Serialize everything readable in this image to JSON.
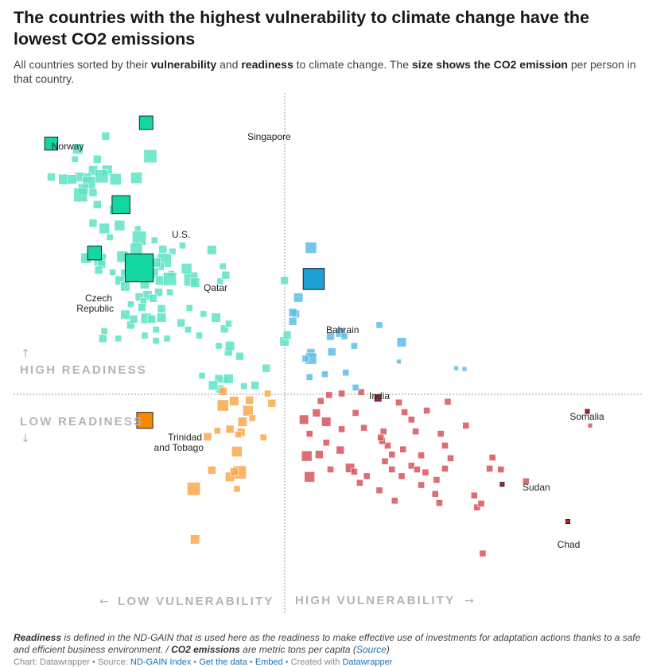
{
  "title": "The countries with the highest vulnerability to climate change have the lowest CO2 emissions",
  "subtitle": {
    "p1": "All countries sorted by their ",
    "b1": "vulnerability",
    "p2": " and ",
    "b2": "readiness",
    "p3": " to climate change. The ",
    "b3": "size shows the CO2 emission",
    "p4": " per person in that country."
  },
  "quadrant_labels": {
    "high_readiness": "HIGH READINESS",
    "low_readiness": "LOW READINESS",
    "low_vulnerability": "LOW VULNERABILITY",
    "high_vulnerability": "HIGH VULNERABILITY",
    "arrow_up": "↑",
    "arrow_down": "↓",
    "arrow_left": "←",
    "arrow_right": "→"
  },
  "colors": {
    "low_vuln_high_ready": "#5de3c3",
    "high_vuln_high_ready": "#5cbde6",
    "low_vuln_low_ready": "#f9a84b",
    "high_vuln_low_ready": "#d6555a",
    "highlight_low_vuln_high_ready": "#13d6a1",
    "highlight_high_vuln_high_ready": "#1c9fd3",
    "highlight_low_vuln_low_ready": "#f78a00",
    "highlight_high_vuln_low_ready": "#b8252c",
    "divider": "#999999"
  },
  "chart_data": {
    "type": "scatter",
    "x_variable": "vulnerability",
    "y_variable": "readiness",
    "size_variable": "CO2 emissions per capita",
    "xlim": [
      0.25,
      0.7
    ],
    "ylim": [
      0.15,
      0.85
    ],
    "x_split": 0.45,
    "y_split": 0.45,
    "labeled_points": [
      {
        "name": "Norway",
        "x": 0.277,
        "y": 0.782,
        "co2": 8.0
      },
      {
        "name": "Singapore",
        "x": 0.345,
        "y": 0.81,
        "co2": 8.5
      },
      {
        "name": "U.S.",
        "x": 0.327,
        "y": 0.7,
        "co2": 15.0
      },
      {
        "name": "Czech Republic",
        "x": 0.308,
        "y": 0.635,
        "co2": 9.0
      },
      {
        "name": "Qatar",
        "x": 0.34,
        "y": 0.615,
        "co2": 37.0
      },
      {
        "name": "Bahrain",
        "x": 0.465,
        "y": 0.6,
        "co2": 21.0
      },
      {
        "name": "India",
        "x": 0.511,
        "y": 0.44,
        "co2": 1.8
      },
      {
        "name": "Trinidad and Tobago",
        "x": 0.344,
        "y": 0.41,
        "co2": 12.0
      },
      {
        "name": "Somalia",
        "x": 0.661,
        "y": 0.422,
        "co2": 0.05
      },
      {
        "name": "Sudan",
        "x": 0.6,
        "y": 0.324,
        "co2": 0.4
      },
      {
        "name": "Chad",
        "x": 0.647,
        "y": 0.274,
        "co2": 0.1
      }
    ],
    "points": [
      {
        "x": 0.316,
        "y": 0.792,
        "co2": 3
      },
      {
        "x": 0.296,
        "y": 0.775,
        "co2": 5
      },
      {
        "x": 0.348,
        "y": 0.765,
        "co2": 8
      },
      {
        "x": 0.294,
        "y": 0.761,
        "co2": 2
      },
      {
        "x": 0.31,
        "y": 0.761,
        "co2": 3
      },
      {
        "x": 0.317,
        "y": 0.746,
        "co2": 5
      },
      {
        "x": 0.307,
        "y": 0.746,
        "co2": 4
      },
      {
        "x": 0.313,
        "y": 0.738,
        "co2": 8
      },
      {
        "x": 0.303,
        "y": 0.737,
        "co2": 3
      },
      {
        "x": 0.297,
        "y": 0.737,
        "co2": 4
      },
      {
        "x": 0.277,
        "y": 0.737,
        "co2": 3
      },
      {
        "x": 0.286,
        "y": 0.734,
        "co2": 5
      },
      {
        "x": 0.292,
        "y": 0.734,
        "co2": 4
      },
      {
        "x": 0.304,
        "y": 0.729,
        "co2": 8
      },
      {
        "x": 0.323,
        "y": 0.734,
        "co2": 6
      },
      {
        "x": 0.338,
        "y": 0.736,
        "co2": 6
      },
      {
        "x": 0.3,
        "y": 0.721,
        "co2": 5
      },
      {
        "x": 0.307,
        "y": 0.716,
        "co2": 3
      },
      {
        "x": 0.298,
        "y": 0.713,
        "co2": 9
      },
      {
        "x": 0.31,
        "y": 0.7,
        "co2": 3
      },
      {
        "x": 0.322,
        "y": 0.693,
        "co2": 4
      },
      {
        "x": 0.326,
        "y": 0.672,
        "co2": 5
      },
      {
        "x": 0.307,
        "y": 0.675,
        "co2": 3
      },
      {
        "x": 0.315,
        "y": 0.668,
        "co2": 5
      },
      {
        "x": 0.339,
        "y": 0.667,
        "co2": 2
      },
      {
        "x": 0.34,
        "y": 0.655,
        "co2": 9
      },
      {
        "x": 0.351,
        "y": 0.652,
        "co2": 2
      },
      {
        "x": 0.319,
        "y": 0.656,
        "co2": 2
      },
      {
        "x": 0.338,
        "y": 0.64,
        "co2": 7
      },
      {
        "x": 0.357,
        "y": 0.64,
        "co2": 3
      },
      {
        "x": 0.364,
        "y": 0.637,
        "co2": 2
      },
      {
        "x": 0.328,
        "y": 0.63,
        "co2": 6
      },
      {
        "x": 0.358,
        "y": 0.625,
        "co2": 9
      },
      {
        "x": 0.302,
        "y": 0.628,
        "co2": 5
      },
      {
        "x": 0.312,
        "y": 0.626,
        "co2": 7
      },
      {
        "x": 0.313,
        "y": 0.62,
        "co2": 3
      },
      {
        "x": 0.355,
        "y": 0.617,
        "co2": 3
      },
      {
        "x": 0.311,
        "y": 0.612,
        "co2": 3
      },
      {
        "x": 0.337,
        "y": 0.608,
        "co2": 8
      },
      {
        "x": 0.35,
        "y": 0.608,
        "co2": 5
      },
      {
        "x": 0.321,
        "y": 0.609,
        "co2": 2
      },
      {
        "x": 0.33,
        "y": 0.607,
        "co2": 4
      },
      {
        "x": 0.363,
        "y": 0.607,
        "co2": 2
      },
      {
        "x": 0.355,
        "y": 0.598,
        "co2": 4
      },
      {
        "x": 0.341,
        "y": 0.6,
        "co2": 2
      },
      {
        "x": 0.326,
        "y": 0.598,
        "co2": 4
      },
      {
        "x": 0.362,
        "y": 0.6,
        "co2": 8
      },
      {
        "x": 0.377,
        "y": 0.6,
        "co2": 9
      },
      {
        "x": 0.344,
        "y": 0.593,
        "co2": 4
      },
      {
        "x": 0.33,
        "y": 0.59,
        "co2": 4
      },
      {
        "x": 0.354,
        "y": 0.582,
        "co2": 3
      },
      {
        "x": 0.362,
        "y": 0.582,
        "co2": 2
      },
      {
        "x": 0.346,
        "y": 0.578,
        "co2": 4
      },
      {
        "x": 0.34,
        "y": 0.576,
        "co2": 3
      },
      {
        "x": 0.35,
        "y": 0.574,
        "co2": 3
      },
      {
        "x": 0.343,
        "y": 0.57,
        "co2": 2
      },
      {
        "x": 0.334,
        "y": 0.566,
        "co2": 2
      },
      {
        "x": 0.342,
        "y": 0.562,
        "co2": 3
      },
      {
        "x": 0.376,
        "y": 0.561,
        "co2": 2
      },
      {
        "x": 0.386,
        "y": 0.553,
        "co2": 2
      },
      {
        "x": 0.356,
        "y": 0.56,
        "co2": 3
      },
      {
        "x": 0.37,
        "y": 0.541,
        "co2": 3
      },
      {
        "x": 0.344,
        "y": 0.524,
        "co2": 2
      },
      {
        "x": 0.334,
        "y": 0.538,
        "co2": 3
      },
      {
        "x": 0.352,
        "y": 0.532,
        "co2": 2
      },
      {
        "x": 0.375,
        "y": 0.532,
        "co2": 2
      },
      {
        "x": 0.36,
        "y": 0.52,
        "co2": 2
      },
      {
        "x": 0.383,
        "y": 0.524,
        "co2": 2
      },
      {
        "x": 0.315,
        "y": 0.53,
        "co2": 2
      },
      {
        "x": 0.356,
        "y": 0.548,
        "co2": 4
      },
      {
        "x": 0.345,
        "y": 0.547,
        "co2": 5
      },
      {
        "x": 0.349,
        "y": 0.546,
        "co2": 3
      },
      {
        "x": 0.336,
        "y": 0.546,
        "co2": 3
      },
      {
        "x": 0.33,
        "y": 0.552,
        "co2": 4
      },
      {
        "x": 0.395,
        "y": 0.548,
        "co2": 4
      },
      {
        "x": 0.401,
        "y": 0.533,
        "co2": 3
      },
      {
        "x": 0.404,
        "y": 0.54,
        "co2": 2
      },
      {
        "x": 0.352,
        "y": 0.517,
        "co2": 2
      },
      {
        "x": 0.397,
        "y": 0.51,
        "co2": 2
      },
      {
        "x": 0.325,
        "y": 0.52,
        "co2": 2
      },
      {
        "x": 0.314,
        "y": 0.52,
        "co2": 3
      },
      {
        "x": 0.38,
        "y": 0.595,
        "co2": 4
      },
      {
        "x": 0.398,
        "y": 0.597,
        "co2": 2
      },
      {
        "x": 0.402,
        "y": 0.605,
        "co2": 3
      },
      {
        "x": 0.374,
        "y": 0.614,
        "co2": 5
      },
      {
        "x": 0.352,
        "y": 0.622,
        "co2": 4
      },
      {
        "x": 0.371,
        "y": 0.645,
        "co2": 2
      },
      {
        "x": 0.392,
        "y": 0.639,
        "co2": 4
      },
      {
        "x": 0.4,
        "y": 0.617,
        "co2": 2
      },
      {
        "x": 0.404,
        "y": 0.502,
        "co2": 3
      },
      {
        "x": 0.412,
        "y": 0.496,
        "co2": 3
      },
      {
        "x": 0.405,
        "y": 0.51,
        "co2": 4
      },
      {
        "x": 0.444,
        "y": 0.598,
        "co2": 3
      },
      {
        "x": 0.452,
        "y": 0.553,
        "co2": 3
      },
      {
        "x": 0.45,
        "y": 0.555,
        "co2": 3
      },
      {
        "x": 0.454,
        "y": 0.575,
        "co2": 4
      },
      {
        "x": 0.463,
        "y": 0.642,
        "co2": 6
      },
      {
        "x": 0.45,
        "y": 0.543,
        "co2": 3
      },
      {
        "x": 0.444,
        "y": 0.516,
        "co2": 4
      },
      {
        "x": 0.446,
        "y": 0.525,
        "co2": 3
      },
      {
        "x": 0.463,
        "y": 0.501,
        "co2": 3
      },
      {
        "x": 0.463,
        "y": 0.493,
        "co2": 6
      },
      {
        "x": 0.477,
        "y": 0.523,
        "co2": 3
      },
      {
        "x": 0.484,
        "y": 0.528,
        "co2": 4
      },
      {
        "x": 0.487,
        "y": 0.523,
        "co2": 2
      },
      {
        "x": 0.478,
        "y": 0.502,
        "co2": 3
      },
      {
        "x": 0.494,
        "y": 0.51,
        "co2": 2
      },
      {
        "x": 0.512,
        "y": 0.538,
        "co2": 2
      },
      {
        "x": 0.528,
        "y": 0.515,
        "co2": 4
      },
      {
        "x": 0.526,
        "y": 0.489,
        "co2": 1
      },
      {
        "x": 0.567,
        "y": 0.48,
        "co2": 1
      },
      {
        "x": 0.573,
        "y": 0.479,
        "co2": 1
      },
      {
        "x": 0.401,
        "y": 0.464,
        "co2": 2
      },
      {
        "x": 0.404,
        "y": 0.466,
        "co2": 4
      },
      {
        "x": 0.397,
        "y": 0.466,
        "co2": 3
      },
      {
        "x": 0.398,
        "y": 0.452,
        "co2": 3
      },
      {
        "x": 0.4,
        "y": 0.449,
        "co2": 3
      },
      {
        "x": 0.431,
        "y": 0.48,
        "co2": 3
      },
      {
        "x": 0.4,
        "y": 0.43,
        "co2": 6
      },
      {
        "x": 0.408,
        "y": 0.436,
        "co2": 4
      },
      {
        "x": 0.419,
        "y": 0.437,
        "co2": 3
      },
      {
        "x": 0.432,
        "y": 0.446,
        "co2": 2
      },
      {
        "x": 0.435,
        "y": 0.433,
        "co2": 3
      },
      {
        "x": 0.423,
        "y": 0.457,
        "co2": 3
      },
      {
        "x": 0.415,
        "y": 0.456,
        "co2": 2
      },
      {
        "x": 0.385,
        "y": 0.47,
        "co2": 2
      },
      {
        "x": 0.393,
        "y": 0.457,
        "co2": 4
      },
      {
        "x": 0.418,
        "y": 0.423,
        "co2": 5
      },
      {
        "x": 0.396,
        "y": 0.396,
        "co2": 2
      },
      {
        "x": 0.414,
        "y": 0.408,
        "co2": 4
      },
      {
        "x": 0.413,
        "y": 0.394,
        "co2": 3
      },
      {
        "x": 0.41,
        "y": 0.368,
        "co2": 5
      },
      {
        "x": 0.412,
        "y": 0.34,
        "co2": 8
      },
      {
        "x": 0.405,
        "y": 0.398,
        "co2": 3
      },
      {
        "x": 0.389,
        "y": 0.388,
        "co2": 3
      },
      {
        "x": 0.392,
        "y": 0.343,
        "co2": 3
      },
      {
        "x": 0.411,
        "y": 0.391,
        "co2": 2
      },
      {
        "x": 0.41,
        "y": 0.318,
        "co2": 2
      },
      {
        "x": 0.421,
        "y": 0.413,
        "co2": 2
      },
      {
        "x": 0.429,
        "y": 0.387,
        "co2": 2
      },
      {
        "x": 0.379,
        "y": 0.318,
        "co2": 8
      },
      {
        "x": 0.38,
        "y": 0.25,
        "co2": 4
      },
      {
        "x": 0.405,
        "y": 0.334,
        "co2": 4
      },
      {
        "x": 0.408,
        "y": 0.341,
        "co2": 3
      },
      {
        "x": 0.459,
        "y": 0.493,
        "co2": 2
      },
      {
        "x": 0.462,
        "y": 0.468,
        "co2": 2
      },
      {
        "x": 0.473,
        "y": 0.472,
        "co2": 2
      },
      {
        "x": 0.476,
        "y": 0.444,
        "co2": 2
      },
      {
        "x": 0.47,
        "y": 0.436,
        "co2": 2
      },
      {
        "x": 0.485,
        "y": 0.446,
        "co2": 2
      },
      {
        "x": 0.499,
        "y": 0.448,
        "co2": 2
      },
      {
        "x": 0.488,
        "y": 0.474,
        "co2": 2
      },
      {
        "x": 0.495,
        "y": 0.454,
        "co2": 2
      },
      {
        "x": 0.458,
        "y": 0.411,
        "co2": 4
      },
      {
        "x": 0.467,
        "y": 0.42,
        "co2": 3
      },
      {
        "x": 0.474,
        "y": 0.408,
        "co2": 4
      },
      {
        "x": 0.462,
        "y": 0.392,
        "co2": 2
      },
      {
        "x": 0.474,
        "y": 0.38,
        "co2": 2
      },
      {
        "x": 0.46,
        "y": 0.362,
        "co2": 5
      },
      {
        "x": 0.469,
        "y": 0.364,
        "co2": 3
      },
      {
        "x": 0.477,
        "y": 0.344,
        "co2": 2
      },
      {
        "x": 0.484,
        "y": 0.37,
        "co2": 3
      },
      {
        "x": 0.485,
        "y": 0.398,
        "co2": 2
      },
      {
        "x": 0.491,
        "y": 0.346,
        "co2": 4
      },
      {
        "x": 0.462,
        "y": 0.334,
        "co2": 5
      },
      {
        "x": 0.495,
        "y": 0.42,
        "co2": 2
      },
      {
        "x": 0.501,
        "y": 0.4,
        "co2": 2
      },
      {
        "x": 0.515,
        "y": 0.395,
        "co2": 2
      },
      {
        "x": 0.526,
        "y": 0.434,
        "co2": 2
      },
      {
        "x": 0.53,
        "y": 0.421,
        "co2": 2
      },
      {
        "x": 0.535,
        "y": 0.411,
        "co2": 2
      },
      {
        "x": 0.546,
        "y": 0.423,
        "co2": 2
      },
      {
        "x": 0.561,
        "y": 0.435,
        "co2": 2
      },
      {
        "x": 0.574,
        "y": 0.403,
        "co2": 2
      },
      {
        "x": 0.556,
        "y": 0.392,
        "co2": 2
      },
      {
        "x": 0.559,
        "y": 0.376,
        "co2": 2
      },
      {
        "x": 0.563,
        "y": 0.359,
        "co2": 2
      },
      {
        "x": 0.559,
        "y": 0.345,
        "co2": 2
      },
      {
        "x": 0.542,
        "y": 0.363,
        "co2": 2
      },
      {
        "x": 0.538,
        "y": 0.395,
        "co2": 2
      },
      {
        "x": 0.529,
        "y": 0.371,
        "co2": 2
      },
      {
        "x": 0.521,
        "y": 0.364,
        "co2": 2
      },
      {
        "x": 0.518,
        "y": 0.376,
        "co2": 2
      },
      {
        "x": 0.514,
        "y": 0.382,
        "co2": 2
      },
      {
        "x": 0.513,
        "y": 0.387,
        "co2": 2
      },
      {
        "x": 0.516,
        "y": 0.355,
        "co2": 2
      },
      {
        "x": 0.521,
        "y": 0.344,
        "co2": 2
      },
      {
        "x": 0.528,
        "y": 0.335,
        "co2": 2
      },
      {
        "x": 0.535,
        "y": 0.349,
        "co2": 2
      },
      {
        "x": 0.539,
        "y": 0.344,
        "co2": 2
      },
      {
        "x": 0.542,
        "y": 0.323,
        "co2": 2
      },
      {
        "x": 0.545,
        "y": 0.34,
        "co2": 2
      },
      {
        "x": 0.553,
        "y": 0.33,
        "co2": 2
      },
      {
        "x": 0.552,
        "y": 0.311,
        "co2": 2
      },
      {
        "x": 0.555,
        "y": 0.299,
        "co2": 2
      },
      {
        "x": 0.512,
        "y": 0.316,
        "co2": 2
      },
      {
        "x": 0.523,
        "y": 0.302,
        "co2": 2
      },
      {
        "x": 0.498,
        "y": 0.326,
        "co2": 2
      },
      {
        "x": 0.494,
        "y": 0.341,
        "co2": 2
      },
      {
        "x": 0.503,
        "y": 0.335,
        "co2": 2
      },
      {
        "x": 0.591,
        "y": 0.345,
        "co2": 2
      },
      {
        "x": 0.58,
        "y": 0.309,
        "co2": 2
      },
      {
        "x": 0.582,
        "y": 0.293,
        "co2": 2
      },
      {
        "x": 0.585,
        "y": 0.298,
        "co2": 2
      },
      {
        "x": 0.593,
        "y": 0.36,
        "co2": 2
      },
      {
        "x": 0.599,
        "y": 0.344,
        "co2": 2
      },
      {
        "x": 0.617,
        "y": 0.328,
        "co2": 2
      },
      {
        "x": 0.663,
        "y": 0.403,
        "co2": 1
      },
      {
        "x": 0.586,
        "y": 0.231,
        "co2": 2
      }
    ]
  },
  "notes": {
    "b1": "Readiness",
    "t1": " is defined in the ND-GAIN that is used here as the readiness to make effective use of investments for adaptation actions thanks to a safe and efficient business environment. / ",
    "b2": "CO2 emissions",
    "t2": " are metric tons per capita ",
    "paren_open": "(",
    "source_link": "Source",
    "paren_close": ")"
  },
  "footer": {
    "prefix": "Chart: Datawrapper • Source: ",
    "source": "ND-GAIN Index",
    "sep1": " • ",
    "get_data": "Get the data",
    "sep2": " • ",
    "embed": "Embed",
    "sep3": " • Created with ",
    "created_with": "Datawrapper"
  }
}
